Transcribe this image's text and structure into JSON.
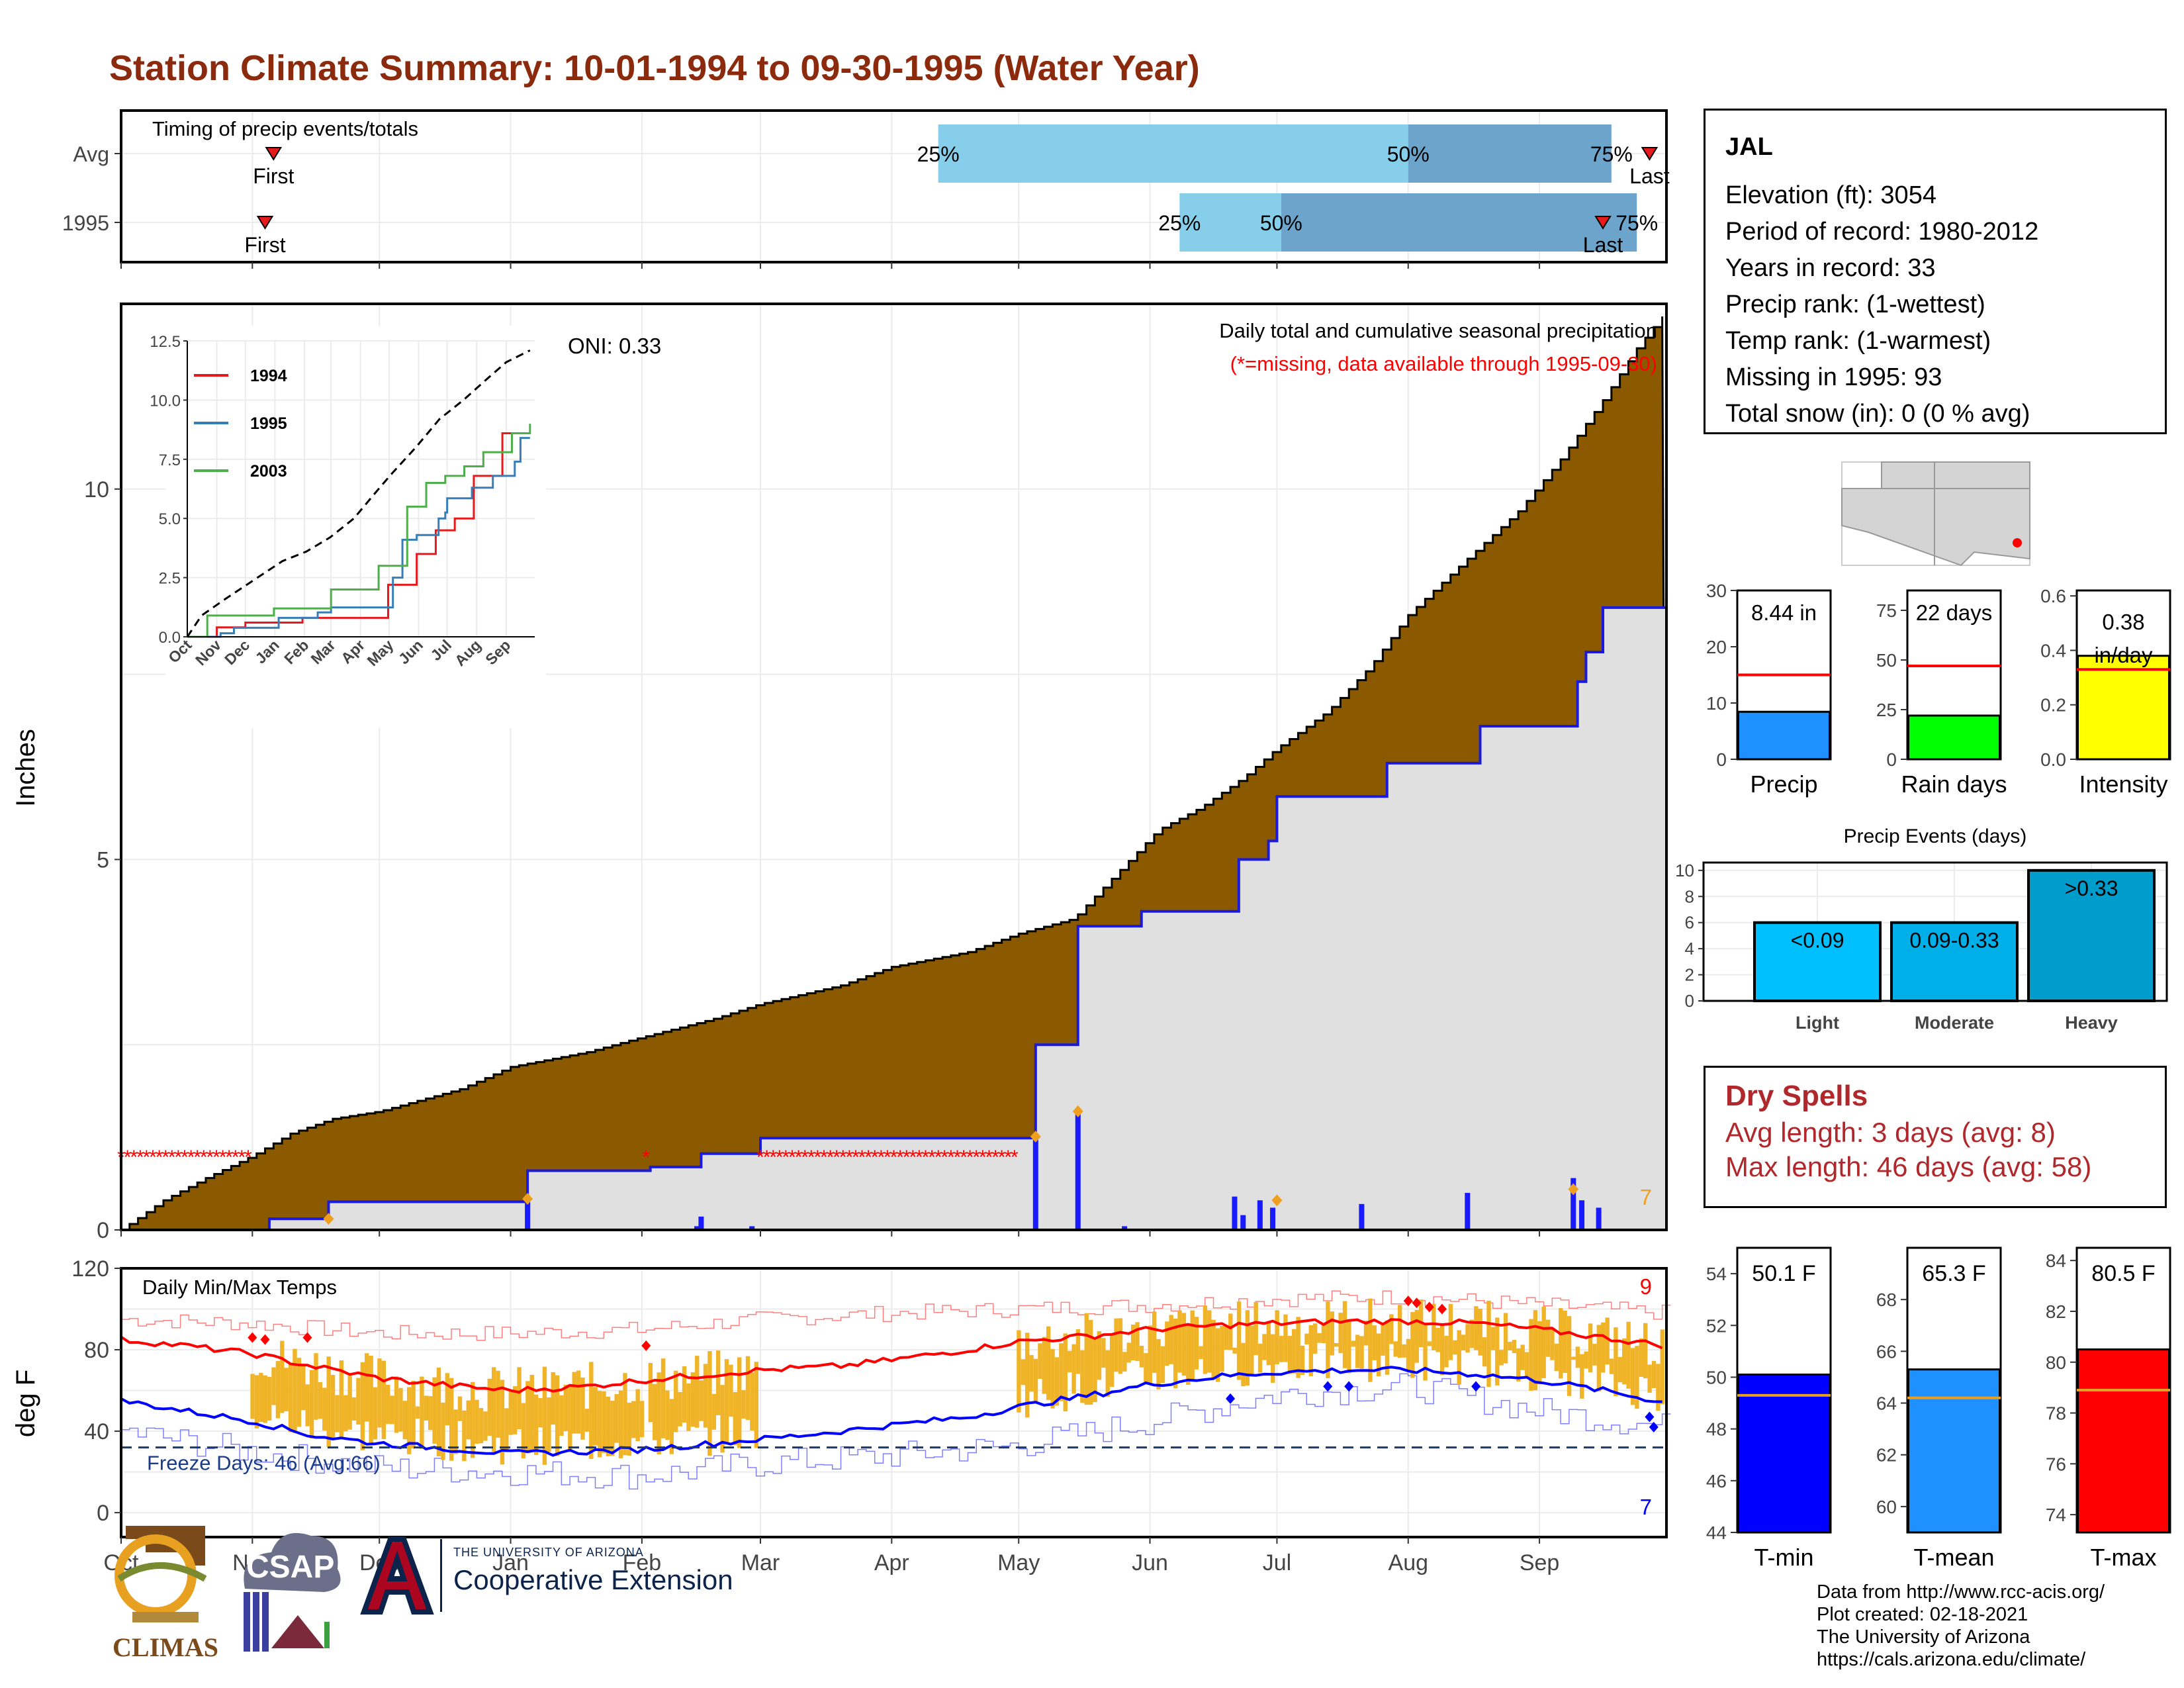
{
  "page": {
    "title": "Station Climate Summary: 10-01-1994 to 09-30-1995 (Water Year)"
  },
  "station": {
    "name": "JAL",
    "lines": [
      "Elevation (ft): 3054",
      "Period of record: 1980-2012",
      "Years in record: 33",
      "Precip rank:  (1-wettest)",
      "Temp rank:  (1-warmest)",
      "Missing in 1995: 93",
      "Total snow (in): 0 (0 % avg)"
    ]
  },
  "dry_spells": {
    "title": "Dry Spells",
    "avg": "Avg length: 3 days (avg: 8)",
    "max": "Max length: 46 days (avg: 58)"
  },
  "credits": [
    "Data from http://www.rcc-acis.org/",
    "Plot created: 02-18-2021",
    "The University of Arizona",
    "https://cals.arizona.edu/climate/"
  ],
  "logos": {
    "climas": "CLIMAS",
    "csap": "CSAP",
    "ua_small": "THE UNIVERSITY OF ARIZONA",
    "ua_big": "Cooperative Extension"
  },
  "colors": {
    "title": "#8b2a0c",
    "cumulative_avg_fill": "#8b5a00",
    "cumulative_current_fill": "#e0e0e0",
    "current_line": "#1a1adf",
    "tmax_avg": "#ff0000",
    "tmin_avg": "#0000ff",
    "daily_range": "#f0b428",
    "timing_light": "#87ceeb",
    "timing_dark": "#6ca4cc"
  },
  "chart_data": [
    {
      "id": "timing",
      "type": "bar",
      "title": "Timing of precip events/totals",
      "rows": [
        {
          "label": "Avg",
          "first_label": "First",
          "last_label": "Last",
          "first_day": 36,
          "last_day": 361,
          "p25_label": "25%",
          "p50_label": "50%",
          "p75_label": "75%",
          "p25_day": 193,
          "p50_day": 304,
          "p75_day": 352
        },
        {
          "label": "1995",
          "first_label": "First",
          "last_label": "Last",
          "first_day": 34,
          "last_day": 350,
          "p25_label": "25%",
          "p50_label": "50%",
          "p75_label": "75%",
          "p25_day": 250,
          "p50_day": 274,
          "p75_day": 358
        }
      ]
    },
    {
      "id": "precip",
      "type": "area",
      "title": "Daily total and cumulative seasonal precipitation",
      "subtitle": "(*=missing, data available through 1995-09-30)",
      "oni": "ONI: 0.33",
      "ylabel": "Inches",
      "ylim": [
        0,
        12.5
      ],
      "yticks": [
        0,
        5,
        10
      ],
      "corner_value": "7",
      "x_labels": [
        "Oct",
        "Nov",
        "Dec",
        "Jan",
        "Feb",
        "Mar",
        "Apr",
        "May",
        "Jun",
        "Jul",
        "Aug",
        "Sep"
      ],
      "avg_cumulative": [
        [
          0,
          0
        ],
        [
          10,
          0.4
        ],
        [
          20,
          0.7
        ],
        [
          31,
          1.0
        ],
        [
          40,
          1.3
        ],
        [
          50,
          1.5
        ],
        [
          61,
          1.6
        ],
        [
          80,
          1.9
        ],
        [
          92,
          2.2
        ],
        [
          110,
          2.4
        ],
        [
          123,
          2.6
        ],
        [
          140,
          2.85
        ],
        [
          151,
          3.05
        ],
        [
          170,
          3.3
        ],
        [
          182,
          3.55
        ],
        [
          200,
          3.75
        ],
        [
          212,
          4.0
        ],
        [
          225,
          4.2
        ],
        [
          235,
          4.8
        ],
        [
          245,
          5.4
        ],
        [
          255,
          5.7
        ],
        [
          265,
          6.1
        ],
        [
          273,
          6.5
        ],
        [
          285,
          7.0
        ],
        [
          295,
          7.6
        ],
        [
          304,
          8.3
        ],
        [
          315,
          8.9
        ],
        [
          330,
          9.7
        ],
        [
          340,
          10.4
        ],
        [
          350,
          11.2
        ],
        [
          358,
          11.9
        ],
        [
          365,
          12.4
        ]
      ],
      "current_cumulative": [
        [
          0,
          0
        ],
        [
          32,
          0
        ],
        [
          35,
          0.15
        ],
        [
          48,
          0.15
        ],
        [
          49,
          0.38
        ],
        [
          95,
          0.38
        ],
        [
          96,
          0.8
        ],
        [
          124,
          0.8
        ],
        [
          125,
          0.85
        ],
        [
          136,
          0.85
        ],
        [
          137,
          1.03
        ],
        [
          150,
          1.03
        ],
        [
          151,
          1.24
        ],
        [
          215,
          1.24
        ],
        [
          216,
          2.5
        ],
        [
          225,
          2.5
        ],
        [
          226,
          4.1
        ],
        [
          240,
          4.1
        ],
        [
          241,
          4.3
        ],
        [
          263,
          4.3
        ],
        [
          264,
          5.0
        ],
        [
          270,
          5.0
        ],
        [
          271,
          5.25
        ],
        [
          273,
          5.85
        ],
        [
          298,
          5.85
        ],
        [
          299,
          6.3
        ],
        [
          320,
          6.3
        ],
        [
          321,
          6.8
        ],
        [
          343,
          6.8
        ],
        [
          344,
          7.4
        ],
        [
          346,
          7.8
        ],
        [
          349,
          7.8
        ],
        [
          350,
          8.4
        ],
        [
          365,
          8.4
        ]
      ],
      "daily_bars": [
        [
          96,
          0.42
        ],
        [
          136,
          0.05
        ],
        [
          137,
          0.18
        ],
        [
          149,
          0.05
        ],
        [
          216,
          1.26
        ],
        [
          226,
          1.6
        ],
        [
          237,
          0.05
        ],
        [
          263,
          0.45
        ],
        [
          265,
          0.2
        ],
        [
          269,
          0.4
        ],
        [
          272,
          0.3
        ],
        [
          293,
          0.35
        ],
        [
          318,
          0.5
        ],
        [
          343,
          0.7
        ],
        [
          345,
          0.4
        ],
        [
          349,
          0.3
        ]
      ],
      "missing_runs": [
        [
          0,
          30
        ],
        [
          124,
          124
        ],
        [
          151,
          212
        ]
      ]
    },
    {
      "id": "cumulative_inset",
      "type": "line",
      "ylim": [
        0,
        12.5
      ],
      "yticks": [
        "0.0",
        "2.5",
        "5.0",
        "7.5",
        "10.0",
        "12.5"
      ],
      "x_labels": [
        "Oct",
        "Nov",
        "Dec",
        "Jan",
        "Feb",
        "Mar",
        "Apr",
        "May",
        "Jun",
        "Jul",
        "Aug",
        "Sep"
      ],
      "series": [
        {
          "name": "1994",
          "color": "#e41a1c",
          "points": [
            [
              0,
              0
            ],
            [
              30,
              0
            ],
            [
              31,
              0.4
            ],
            [
              60,
              0.4
            ],
            [
              61,
              0.6
            ],
            [
              120,
              0.6
            ],
            [
              121,
              0.8
            ],
            [
              210,
              0.8
            ],
            [
              211,
              2.2
            ],
            [
              240,
              2.2
            ],
            [
              241,
              3.5
            ],
            [
              260,
              3.5
            ],
            [
              261,
              4.5
            ],
            [
              280,
              4.5
            ],
            [
              281,
              5.0
            ],
            [
              300,
              5.0
            ],
            [
              301,
              6.8
            ],
            [
              330,
              6.8
            ],
            [
              331,
              8.6
            ],
            [
              350,
              8.6
            ],
            [
              351,
              8.6
            ]
          ]
        },
        {
          "name": "1995",
          "color": "#377eb8",
          "points": [
            [
              0,
              0
            ],
            [
              32,
              0
            ],
            [
              35,
              0.15
            ],
            [
              49,
              0.38
            ],
            [
              96,
              0.8
            ],
            [
              137,
              1.03
            ],
            [
              151,
              1.24
            ],
            [
              215,
              1.24
            ],
            [
              216,
              2.5
            ],
            [
              226,
              4.1
            ],
            [
              241,
              4.3
            ],
            [
              264,
              5.0
            ],
            [
              271,
              5.25
            ],
            [
              273,
              5.85
            ],
            [
              299,
              6.3
            ],
            [
              321,
              6.8
            ],
            [
              344,
              7.4
            ],
            [
              350,
              8.4
            ],
            [
              360,
              8.4
            ]
          ]
        },
        {
          "name": "2003",
          "color": "#4daf4a",
          "points": [
            [
              0,
              0
            ],
            [
              20,
              0
            ],
            [
              21,
              0.9
            ],
            [
              90,
              0.9
            ],
            [
              91,
              1.2
            ],
            [
              150,
              1.2
            ],
            [
              151,
              2.0
            ],
            [
              200,
              2.0
            ],
            [
              201,
              3.0
            ],
            [
              230,
              3.0
            ],
            [
              231,
              5.5
            ],
            [
              250,
              5.5
            ],
            [
              251,
              6.5
            ],
            [
              270,
              6.5
            ],
            [
              271,
              6.8
            ],
            [
              290,
              6.8
            ],
            [
              291,
              7.2
            ],
            [
              310,
              7.2
            ],
            [
              311,
              7.8
            ],
            [
              340,
              7.8
            ],
            [
              341,
              8.6
            ],
            [
              355,
              8.6
            ],
            [
              360,
              9.0
            ]
          ]
        }
      ],
      "avg_dashed": [
        [
          0,
          0
        ],
        [
          15,
          0.9
        ],
        [
          40,
          1.6
        ],
        [
          70,
          2.4
        ],
        [
          100,
          3.2
        ],
        [
          125,
          3.6
        ],
        [
          150,
          4.2
        ],
        [
          175,
          5.0
        ],
        [
          200,
          6.2
        ],
        [
          215,
          6.9
        ],
        [
          240,
          8.0
        ],
        [
          265,
          9.2
        ],
        [
          290,
          10.0
        ],
        [
          315,
          10.9
        ],
        [
          335,
          11.6
        ],
        [
          360,
          12.1
        ]
      ]
    },
    {
      "id": "temps",
      "type": "line",
      "title": "Daily Min/Max Temps",
      "ylabel": "deg F",
      "ylim": [
        -12,
        120
      ],
      "yticks": [
        0,
        40,
        80,
        120
      ],
      "corner_top": "9",
      "corner_bottom": "7",
      "freeze_label": "Freeze Days: 46 (Avg:66)",
      "freeze_line": 32,
      "x_labels": [
        "Oct",
        "Nov",
        "Dec",
        "Jan",
        "Feb",
        "Mar",
        "Apr",
        "May",
        "Jun",
        "Jul",
        "Aug",
        "Sep"
      ],
      "avg_max": [
        [
          0,
          85
        ],
        [
          15,
          82
        ],
        [
          31,
          78
        ],
        [
          45,
          72
        ],
        [
          61,
          66
        ],
        [
          80,
          62
        ],
        [
          92,
          60
        ],
        [
          110,
          62
        ],
        [
          123,
          65
        ],
        [
          140,
          68
        ],
        [
          151,
          70
        ],
        [
          170,
          72
        ],
        [
          182,
          75
        ],
        [
          200,
          80
        ],
        [
          212,
          84
        ],
        [
          230,
          87
        ],
        [
          243,
          90
        ],
        [
          260,
          92
        ],
        [
          273,
          93
        ],
        [
          290,
          94
        ],
        [
          304,
          94
        ],
        [
          320,
          93
        ],
        [
          335,
          90
        ],
        [
          350,
          86
        ],
        [
          365,
          82
        ]
      ],
      "avg_min": [
        [
          0,
          55
        ],
        [
          15,
          50
        ],
        [
          31,
          45
        ],
        [
          45,
          38
        ],
        [
          61,
          34
        ],
        [
          80,
          31
        ],
        [
          92,
          29
        ],
        [
          110,
          30
        ],
        [
          123,
          31
        ],
        [
          140,
          34
        ],
        [
          151,
          36
        ],
        [
          170,
          40
        ],
        [
          182,
          43
        ],
        [
          200,
          47
        ],
        [
          212,
          52
        ],
        [
          230,
          58
        ],
        [
          243,
          63
        ],
        [
          260,
          67
        ],
        [
          273,
          69
        ],
        [
          290,
          70
        ],
        [
          304,
          70
        ],
        [
          320,
          68
        ],
        [
          335,
          65
        ],
        [
          350,
          60
        ],
        [
          365,
          54
        ]
      ],
      "record_max": [
        [
          0,
          95
        ],
        [
          30,
          93
        ],
        [
          61,
          88
        ],
        [
          92,
          88
        ],
        [
          123,
          90
        ],
        [
          151,
          95
        ],
        [
          182,
          98
        ],
        [
          212,
          100
        ],
        [
          243,
          102
        ],
        [
          273,
          105
        ],
        [
          304,
          106
        ],
        [
          335,
          102
        ],
        [
          365,
          98
        ]
      ],
      "record_min": [
        [
          0,
          40
        ],
        [
          30,
          30
        ],
        [
          61,
          22
        ],
        [
          92,
          20
        ],
        [
          123,
          18
        ],
        [
          151,
          24
        ],
        [
          182,
          28
        ],
        [
          212,
          33
        ],
        [
          243,
          45
        ],
        [
          273,
          58
        ],
        [
          304,
          62
        ],
        [
          335,
          50
        ],
        [
          365,
          42
        ]
      ]
    },
    {
      "id": "precip_summary",
      "type": "bar",
      "panels": [
        {
          "label": "Precip",
          "value_label": "8.44 in",
          "value": 8.44,
          "avg": 15,
          "ylim": [
            0,
            30
          ],
          "yticks": [
            0,
            10,
            20,
            30
          ],
          "color": "#1e90ff"
        },
        {
          "label": "Rain days",
          "value_label": "22 days",
          "value": 22,
          "avg": 47,
          "ylim": [
            0,
            85
          ],
          "yticks": [
            0,
            25,
            50,
            75
          ],
          "color": "#00ff00"
        },
        {
          "label": "Intensity",
          "value_label": "0.38 in/day",
          "value": 0.38,
          "avg": 0.33,
          "ylim": [
            0,
            0.62
          ],
          "yticks": [
            "0.0",
            "0.2",
            "0.4",
            "0.6"
          ],
          "color": "#ffff00"
        }
      ]
    },
    {
      "id": "precip_events",
      "type": "bar",
      "title": "Precip Events (days)",
      "categories": [
        "Light",
        "Moderate",
        "Heavy"
      ],
      "bar_labels": [
        "<0.09",
        "0.09-0.33",
        ">0.33"
      ],
      "values": [
        6,
        6,
        10
      ],
      "ylim": [
        0,
        10.6
      ],
      "yticks": [
        0,
        2,
        4,
        6,
        8,
        10
      ],
      "colors": [
        "#00bfff",
        "#00aee8",
        "#009ccc"
      ]
    },
    {
      "id": "temp_summary",
      "type": "bar",
      "panels": [
        {
          "label": "T-min",
          "value_label": "50.1 F",
          "value": 50.1,
          "avg": 49.3,
          "ylim": [
            44,
            55
          ],
          "yticks": [
            44,
            46,
            48,
            50,
            52,
            54
          ],
          "color": "#0000ff"
        },
        {
          "label": "T-mean",
          "value_label": "65.3 F",
          "value": 65.3,
          "avg": 64.2,
          "ylim": [
            59,
            70
          ],
          "yticks": [
            60,
            62,
            64,
            66,
            68
          ],
          "color": "#1e90ff"
        },
        {
          "label": "T-max",
          "value_label": "80.5 F",
          "value": 80.5,
          "avg": 78.9,
          "ylim": [
            73.3,
            84.5
          ],
          "yticks": [
            74,
            76,
            78,
            80,
            82,
            84
          ],
          "color": "#ff0000"
        }
      ]
    }
  ]
}
